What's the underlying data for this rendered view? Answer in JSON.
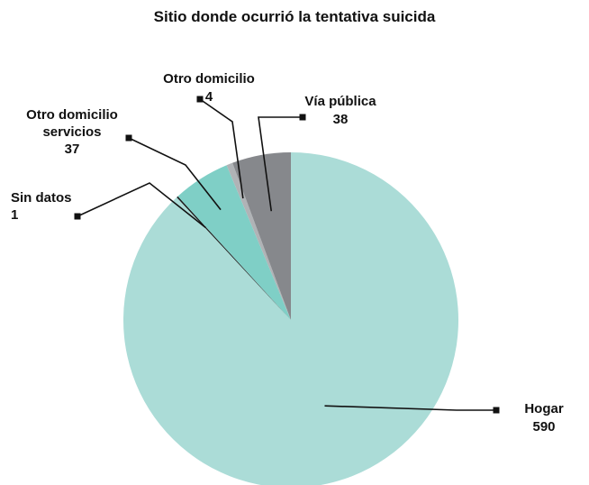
{
  "chart_data": {
    "type": "pie",
    "title": "Sitio donde ocurrió la tentativa suicida",
    "slices": [
      {
        "name": "Hogar",
        "value": 590,
        "color": "#abdcd7",
        "label_lines": [
          "Hogar",
          "590"
        ]
      },
      {
        "name": "Sin datos",
        "value": 1,
        "color": "#1a1a1a",
        "label_lines": [
          "Sin datos",
          "1"
        ]
      },
      {
        "name": "Otro domicilio servicios",
        "value": 37,
        "color": "#7fcfc6",
        "label_lines": [
          "Otro domicilio",
          "servicios",
          "37"
        ]
      },
      {
        "name": "Otro domicilio",
        "value": 4,
        "color": "#b0b3b6",
        "label_lines": [
          "Otro domicilio",
          "4"
        ]
      },
      {
        "name": "Vía pública",
        "value": 38,
        "color": "#86888c",
        "label_lines": [
          "Vía pública",
          "38"
        ]
      }
    ]
  }
}
